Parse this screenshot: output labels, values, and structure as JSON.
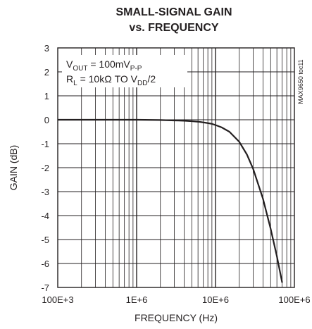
{
  "chart_data": {
    "type": "line",
    "title": "SMALL-SIGNAL GAIN",
    "subtitle": "vs. FREQUENCY",
    "xlabel": "FREQUENCY (Hz)",
    "ylabel": "GAIN (dB)",
    "xscale": "log",
    "xlim": [
      100000,
      100000000
    ],
    "ylim": [
      -7,
      3
    ],
    "x_tick_labels": [
      "100E+3",
      "1E+6",
      "10E+6",
      "100E+6"
    ],
    "x_ticks": [
      100000,
      1000000,
      10000000,
      100000000
    ],
    "y_ticks": [
      -7,
      -6,
      -5,
      -4,
      -3,
      -2,
      -1,
      0,
      1,
      2,
      3
    ],
    "y_tick_labels": [
      "-7",
      "-6",
      "-5",
      "-4",
      "-3",
      "-2",
      "-1",
      "0",
      "1",
      "2",
      "3"
    ],
    "grid": true,
    "line_color": "#231f20",
    "annotations": {
      "vout_main": "V",
      "vout_sub": "OUT",
      "vout_value": " = 100mV",
      "vout_unit_sub": "P-P",
      "rl_main": "R",
      "rl_sub": "L",
      "rl_value": " = 10kΩ TO V",
      "rl_vdd_sub": "DD",
      "rl_tail": "/2",
      "side_label": "MAX9650 toc11"
    },
    "series": [
      {
        "x": [
          100000,
          200000,
          500000,
          1000000,
          2000000,
          3000000,
          4000000,
          5000000,
          6000000,
          7000000,
          8000000,
          9000000,
          10000000,
          12000000,
          15000000,
          20000000,
          25000000,
          30000000,
          40000000,
          50000000,
          60000000,
          70000000
        ],
        "values": [
          0.0,
          0.0,
          0.0,
          0.0,
          -0.01,
          -0.03,
          -0.04,
          -0.06,
          -0.08,
          -0.11,
          -0.14,
          -0.17,
          -0.22,
          -0.32,
          -0.5,
          -0.92,
          -1.45,
          -2.05,
          -3.3,
          -4.55,
          -5.7,
          -6.8
        ]
      }
    ]
  }
}
